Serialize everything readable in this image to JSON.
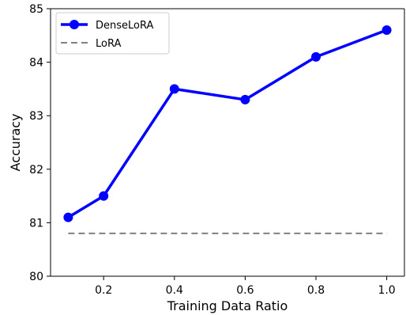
{
  "chart_data": {
    "type": "line",
    "xlabel": "Training Data Ratio",
    "ylabel": "Accuracy",
    "xlim": [
      0.05,
      1.05
    ],
    "ylim": [
      80,
      85
    ],
    "xticks": [
      0.2,
      0.4,
      0.6,
      0.8,
      1.0
    ],
    "xtick_labels": [
      "0.2",
      "0.4",
      "0.6",
      "0.8",
      "1.0"
    ],
    "yticks": [
      80,
      81,
      82,
      83,
      84,
      85
    ],
    "ytick_labels": [
      "80",
      "81",
      "82",
      "83",
      "84",
      "85"
    ],
    "grid": false,
    "legend_position": "top-left",
    "series": [
      {
        "name": "DenseLoRA",
        "style": "solid-with-markers",
        "color": "#0000ff",
        "x": [
          0.1,
          0.2,
          0.4,
          0.6,
          0.8,
          1.0
        ],
        "y": [
          81.1,
          81.5,
          83.5,
          83.3,
          84.1,
          84.6
        ]
      },
      {
        "name": "LoRA",
        "style": "dashed",
        "color": "#808080",
        "x": [
          0.1,
          1.0
        ],
        "y": [
          80.8,
          80.8
        ]
      }
    ]
  }
}
